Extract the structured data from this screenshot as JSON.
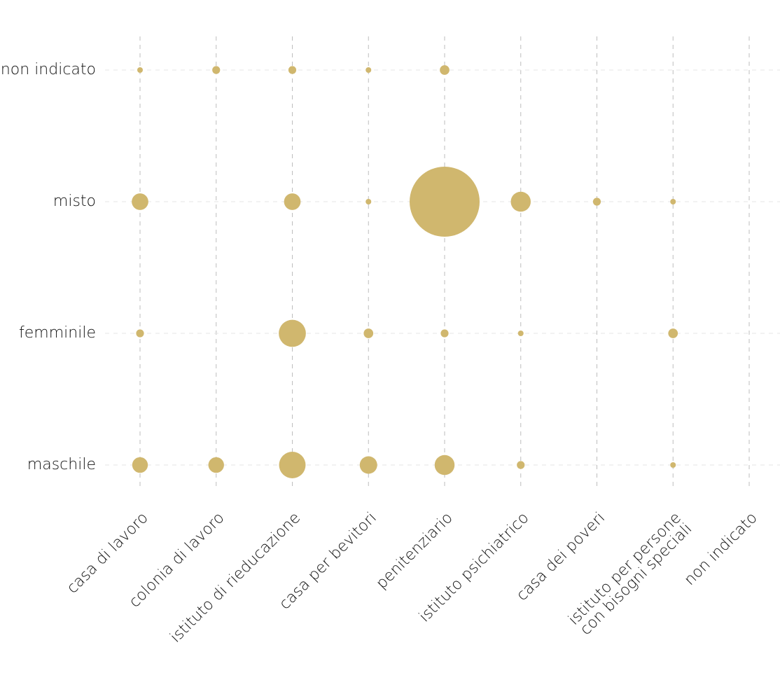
{
  "chart_data": {
    "type": "scatter",
    "subtype": "bubble-matrix",
    "title": "",
    "xlabel": "",
    "ylabel": "",
    "x_categories": [
      "casa di lavoro",
      "colonia di lavoro",
      "istituto di rieducazione",
      "casa per bevitori",
      "penitenziario",
      "istituto psichiatrico",
      "casa dei poveri",
      "istituto per persone\ncon bisogni speciali",
      "non indicato"
    ],
    "y_categories": [
      "non indicato",
      "misto",
      "femminile",
      "maschile"
    ],
    "points": [
      {
        "x": "casa di lavoro",
        "y": "non indicato",
        "value": 1
      },
      {
        "x": "colonia di lavoro",
        "y": "non indicato",
        "value": 2
      },
      {
        "x": "istituto di rieducazione",
        "y": "non indicato",
        "value": 2
      },
      {
        "x": "casa per bevitori",
        "y": "non indicato",
        "value": 1
      },
      {
        "x": "penitenziario",
        "y": "non indicato",
        "value": 3
      },
      {
        "x": "casa di lavoro",
        "y": "misto",
        "value": 9
      },
      {
        "x": "istituto di rieducazione",
        "y": "misto",
        "value": 9
      },
      {
        "x": "casa per bevitori",
        "y": "misto",
        "value": 1
      },
      {
        "x": "penitenziario",
        "y": "misto",
        "value": 160
      },
      {
        "x": "istituto psichiatrico",
        "y": "misto",
        "value": 13
      },
      {
        "x": "casa dei poveri",
        "y": "misto",
        "value": 2
      },
      {
        "x": "istituto per persone\ncon bisogni speciali",
        "y": "misto",
        "value": 1
      },
      {
        "x": "casa di lavoro",
        "y": "femminile",
        "value": 2
      },
      {
        "x": "istituto di rieducazione",
        "y": "femminile",
        "value": 24
      },
      {
        "x": "casa per bevitori",
        "y": "femminile",
        "value": 3
      },
      {
        "x": "penitenziario",
        "y": "femminile",
        "value": 2
      },
      {
        "x": "istituto psichiatrico",
        "y": "femminile",
        "value": 1
      },
      {
        "x": "istituto per persone\ncon bisogni speciali",
        "y": "femminile",
        "value": 3
      },
      {
        "x": "casa di lavoro",
        "y": "maschile",
        "value": 8
      },
      {
        "x": "colonia di lavoro",
        "y": "maschile",
        "value": 8
      },
      {
        "x": "istituto di rieducazione",
        "y": "maschile",
        "value": 23
      },
      {
        "x": "casa per bevitori",
        "y": "maschile",
        "value": 10
      },
      {
        "x": "penitenziario",
        "y": "maschile",
        "value": 13
      },
      {
        "x": "istituto psichiatrico",
        "y": "maschile",
        "value": 2
      },
      {
        "x": "istituto per persone\ncon bisogni speciali",
        "y": "maschile",
        "value": 1
      }
    ],
    "grid": true,
    "legend": "none",
    "bubble_color": "#D0B76E"
  }
}
